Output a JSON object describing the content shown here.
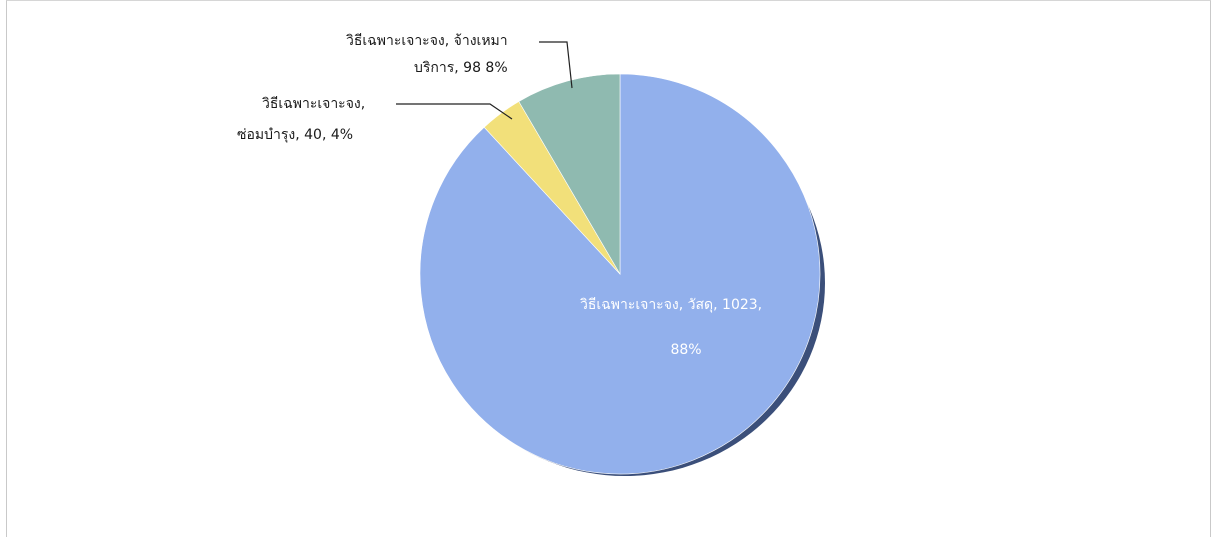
{
  "chart_data": {
    "type": "pie",
    "title": "",
    "slices": [
      {
        "label": "วิธีเฉพาะเจาะจง, วัสดุ",
        "value": 1023,
        "percent": 88,
        "color": "#92b0ec",
        "label_line1": "วิธีเฉพาะเจาะจง, วัสดุ, 1023,",
        "label_line2": "88%"
      },
      {
        "label": "วิธีเฉพาะเจาะจง, ซ่อมบำรุง",
        "value": 40,
        "percent": 4,
        "color": "#f2e07a",
        "label_line1": "วิธีเฉพาะเจาะจง,",
        "label_line2": "ซ่อมบำรุง, 40, 4%"
      },
      {
        "label": "วิธีเฉพาะเจาะจง, จ้างเหมาบริการ",
        "value": 98,
        "percent": 8,
        "color": "#8fbab0",
        "label_line1": "วิธีเฉพาะเจาะจง, จ้างเหมา",
        "label_line2": "บริการ, 98 8%"
      }
    ],
    "legend": "none",
    "shadow_color": "#3b4f7a"
  }
}
